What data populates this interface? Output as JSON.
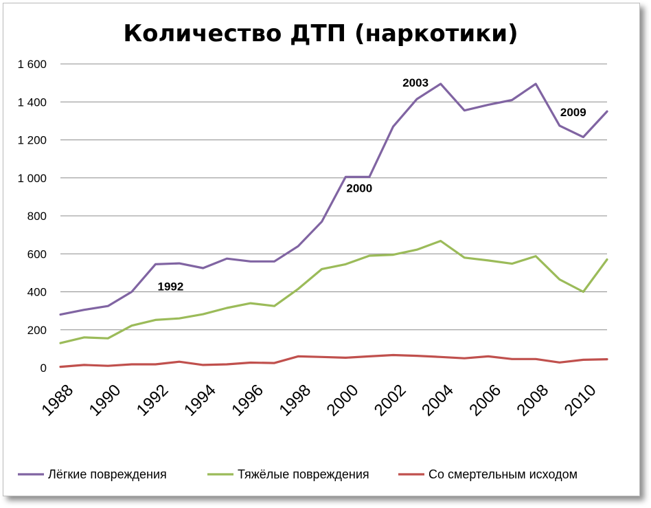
{
  "chart_data": {
    "type": "line",
    "title": "Количество ДТП (наркотики)",
    "x": [
      1988,
      1989,
      1990,
      1991,
      1992,
      1993,
      1994,
      1995,
      1996,
      1997,
      1998,
      1999,
      2000,
      2001,
      2002,
      2003,
      2004,
      2005,
      2006,
      2007,
      2008,
      2009,
      2010,
      2011
    ],
    "x_tick_labels": [
      "1988",
      "1990",
      "1992",
      "1994",
      "1996",
      "1998",
      "2000",
      "2002",
      "2004",
      "2006",
      "2008",
      "2010"
    ],
    "x_tick_values": [
      1988,
      1990,
      1992,
      1994,
      1996,
      1998,
      2000,
      2002,
      2004,
      2006,
      2008,
      2010
    ],
    "y_tick_labels": [
      "0",
      "200",
      "400",
      "600",
      "800",
      "1 000",
      "1 200",
      "1 400",
      "1 600"
    ],
    "y_tick_values": [
      0,
      200,
      400,
      600,
      800,
      1000,
      1200,
      1400,
      1600
    ],
    "ylim": [
      0,
      1600
    ],
    "xlim": [
      1988,
      2011
    ],
    "grid": true,
    "legend_position": "bottom",
    "series": [
      {
        "name": "Лёгкие повреждения",
        "color": "#8064a2",
        "values": [
          280,
          305,
          325,
          400,
          545,
          550,
          525,
          575,
          560,
          560,
          640,
          770,
          1005,
          1005,
          1270,
          1415,
          1495,
          1355,
          1385,
          1410,
          1495,
          1275,
          1215,
          1350
        ]
      },
      {
        "name": "Тяжёлые  повреждения",
        "color": "#9bbb59",
        "values": [
          130,
          160,
          155,
          222,
          252,
          260,
          282,
          315,
          340,
          325,
          415,
          520,
          545,
          590,
          595,
          622,
          668,
          580,
          565,
          548,
          588,
          465,
          400,
          570
        ]
      },
      {
        "name": "Со смертельным исходом",
        "color": "#c0504d",
        "values": [
          5,
          15,
          10,
          18,
          18,
          32,
          15,
          18,
          27,
          25,
          60,
          57,
          53,
          60,
          67,
          63,
          57,
          50,
          60,
          46,
          46,
          28,
          42,
          45
        ]
      }
    ],
    "annotations": [
      {
        "text": "1992",
        "x": 1992,
        "y": 545,
        "series": 0
      },
      {
        "text": "2000",
        "x": 2000,
        "y": 1005,
        "series": 0
      },
      {
        "text": "2003",
        "x": 2003,
        "y": 1415,
        "series": 0
      },
      {
        "text": "2009",
        "x": 2009,
        "y": 1275,
        "series": 0
      }
    ]
  }
}
